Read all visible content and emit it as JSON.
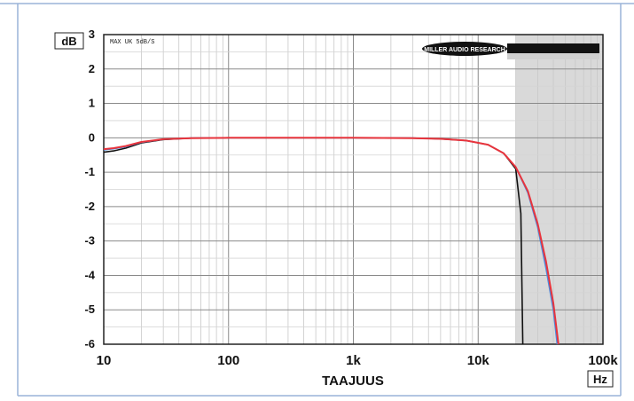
{
  "chart_data": {
    "type": "line",
    "title": "",
    "xlabel": "TAAJUUS",
    "ylabel": "dB",
    "xunit": "Hz",
    "xscale": "log",
    "xlim": [
      10,
      100000
    ],
    "ylim": [
      -6,
      3
    ],
    "grid": true,
    "x_ticks": [
      "10",
      "100",
      "1k",
      "10k",
      "100k"
    ],
    "y_ticks": [
      "3",
      "2",
      "1",
      "0",
      "-1",
      "-2",
      "-3",
      "-4",
      "-5",
      "-6"
    ],
    "corner_text": "MAX UK 5dB/S",
    "logo_text": "MILLER AUDIO RESEARCH",
    "shaded_region": [
      20000,
      100000
    ],
    "series": [
      {
        "color": "#111111",
        "points": [
          [
            10,
            -0.42
          ],
          [
            12,
            -0.38
          ],
          [
            15,
            -0.3
          ],
          [
            20,
            -0.15
          ],
          [
            30,
            -0.05
          ],
          [
            50,
            -0.01
          ],
          [
            100,
            0.0
          ],
          [
            300,
            0.0
          ],
          [
            1000,
            0.0
          ],
          [
            3000,
            -0.01
          ],
          [
            5000,
            -0.03
          ],
          [
            8000,
            -0.08
          ],
          [
            12000,
            -0.2
          ],
          [
            16000,
            -0.45
          ],
          [
            20000,
            -0.9
          ],
          [
            22000,
            -2.2
          ],
          [
            22800,
            -6.0
          ]
        ]
      },
      {
        "color": "#4a8be0",
        "points": [
          [
            10,
            -0.35
          ],
          [
            12,
            -0.32
          ],
          [
            15,
            -0.26
          ],
          [
            20,
            -0.13
          ],
          [
            30,
            -0.04
          ],
          [
            50,
            -0.01
          ],
          [
            100,
            0.0
          ],
          [
            300,
            0.0
          ],
          [
            1000,
            0.0
          ],
          [
            3000,
            -0.01
          ],
          [
            5000,
            -0.03
          ],
          [
            8000,
            -0.08
          ],
          [
            12000,
            -0.2
          ],
          [
            16000,
            -0.45
          ],
          [
            20000,
            -0.85
          ],
          [
            25000,
            -1.6
          ],
          [
            30000,
            -2.6
          ],
          [
            35000,
            -3.8
          ],
          [
            40000,
            -5.0
          ],
          [
            43000,
            -6.0
          ]
        ]
      },
      {
        "color": "#e8343c",
        "points": [
          [
            10,
            -0.33
          ],
          [
            12,
            -0.3
          ],
          [
            15,
            -0.24
          ],
          [
            20,
            -0.12
          ],
          [
            30,
            -0.04
          ],
          [
            50,
            -0.01
          ],
          [
            100,
            0.0
          ],
          [
            300,
            0.0
          ],
          [
            1000,
            0.0
          ],
          [
            3000,
            -0.01
          ],
          [
            5000,
            -0.03
          ],
          [
            8000,
            -0.08
          ],
          [
            12000,
            -0.2
          ],
          [
            16000,
            -0.45
          ],
          [
            20000,
            -0.85
          ],
          [
            25000,
            -1.55
          ],
          [
            30000,
            -2.5
          ],
          [
            35000,
            -3.6
          ],
          [
            40000,
            -4.8
          ],
          [
            44000,
            -6.0
          ]
        ]
      }
    ]
  }
}
